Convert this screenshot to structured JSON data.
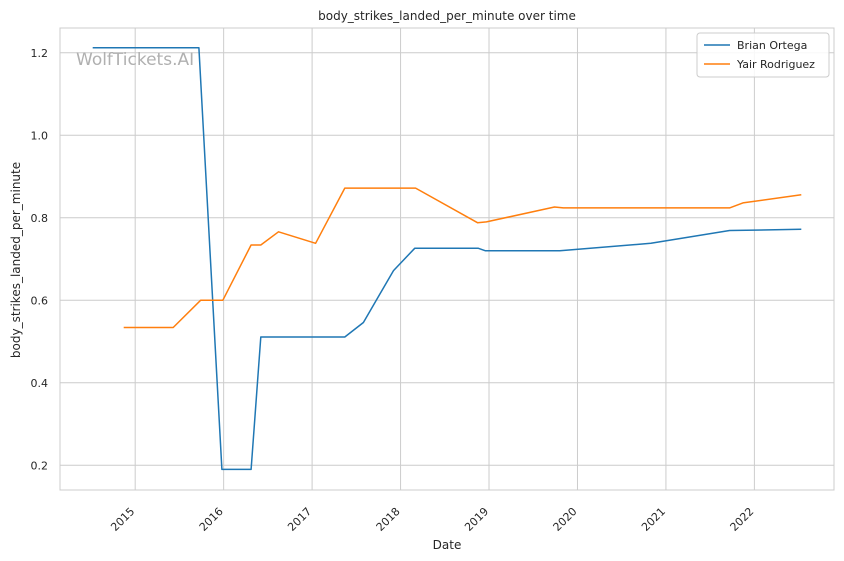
{
  "chart_data": {
    "type": "line",
    "title": "body_strikes_landed_per_minute over time",
    "xlabel": "Date",
    "ylabel": "body_strikes_landed_per_minute",
    "watermark": "WolfTickets.AI",
    "x_ticks": [
      "2015",
      "2016",
      "2017",
      "2018",
      "2019",
      "2020",
      "2021",
      "2022"
    ],
    "y_ticks": [
      "0.2",
      "0.4",
      "0.6",
      "0.8",
      "1.0",
      "1.2"
    ],
    "xlim": [
      2014.15,
      2022.9
    ],
    "ylim": [
      0.14,
      1.26
    ],
    "grid": true,
    "legend_position": "top-right",
    "series": [
      {
        "name": "Brian Ortega",
        "color": "#1f77b4",
        "points": [
          [
            2014.52,
            1.212
          ],
          [
            2015.72,
            1.212
          ],
          [
            2015.98,
            0.19
          ],
          [
            2016.31,
            0.19
          ],
          [
            2016.42,
            0.511
          ],
          [
            2017.37,
            0.511
          ],
          [
            2017.58,
            0.546
          ],
          [
            2017.92,
            0.672
          ],
          [
            2018.16,
            0.726
          ],
          [
            2018.88,
            0.726
          ],
          [
            2018.96,
            0.72
          ],
          [
            2019.8,
            0.72
          ],
          [
            2020.83,
            0.738
          ],
          [
            2021.72,
            0.769
          ],
          [
            2022.53,
            0.772
          ]
        ]
      },
      {
        "name": "Yair Rodriguez",
        "color": "#ff7f0e",
        "points": [
          [
            2014.87,
            0.534
          ],
          [
            2015.43,
            0.534
          ],
          [
            2015.74,
            0.6
          ],
          [
            2015.99,
            0.6
          ],
          [
            2016.31,
            0.734
          ],
          [
            2016.42,
            0.734
          ],
          [
            2016.62,
            0.766
          ],
          [
            2017.04,
            0.738
          ],
          [
            2017.37,
            0.872
          ],
          [
            2018.17,
            0.872
          ],
          [
            2018.87,
            0.788
          ],
          [
            2018.97,
            0.79
          ],
          [
            2019.74,
            0.826
          ],
          [
            2019.84,
            0.824
          ],
          [
            2021.72,
            0.824
          ],
          [
            2021.87,
            0.836
          ],
          [
            2022.53,
            0.856
          ]
        ]
      }
    ]
  }
}
